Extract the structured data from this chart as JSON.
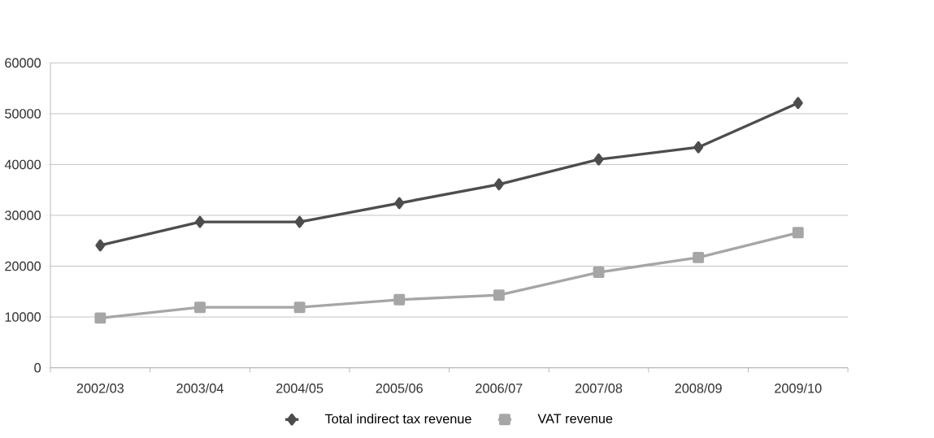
{
  "chart_data": {
    "type": "line",
    "categories": [
      "2002/03",
      "2003/04",
      "2004/05",
      "2005/06",
      "2006/07",
      "2007/08",
      "2008/09",
      "2009/10"
    ],
    "series": [
      {
        "name": "Total indirect tax revenue",
        "color": "#4d4d4d",
        "marker": "diamond",
        "values": [
          24100,
          28700,
          28700,
          32400,
          36100,
          41000,
          43400,
          52100
        ]
      },
      {
        "name": "VAT revenue",
        "color": "#a6a6a6",
        "marker": "square",
        "values": [
          9800,
          11900,
          11900,
          13400,
          14300,
          18800,
          21700,
          26600
        ]
      }
    ],
    "ylim": [
      0,
      60000
    ],
    "yticks": [
      0,
      10000,
      20000,
      30000,
      40000,
      50000,
      60000
    ],
    "grid": "y",
    "legend": "bottom",
    "line_style": "solid"
  }
}
